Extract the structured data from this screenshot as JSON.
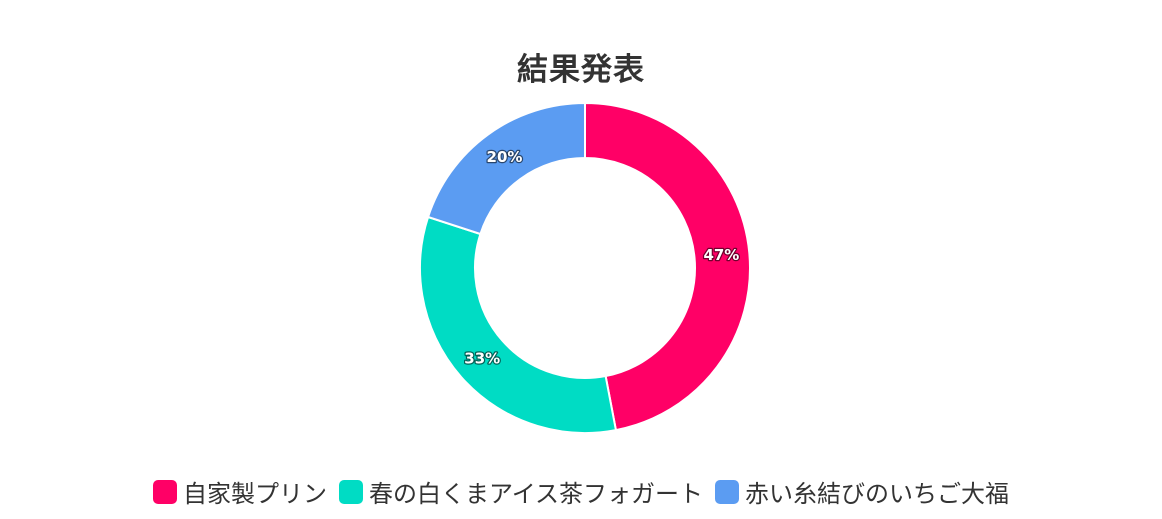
{
  "chart_data": {
    "type": "pie",
    "title": "結果発表",
    "donut": true,
    "legend_position": "bottom",
    "categories": [
      "自家製プリン",
      "春の白くまアイス茶フォガート",
      "赤い糸結びのいちご大福"
    ],
    "values": [
      47,
      33,
      20
    ],
    "labels": [
      "47%",
      "33%",
      "20%"
    ],
    "colors": [
      "#ff0066",
      "#00dcc4",
      "#5b9cf2"
    ]
  }
}
